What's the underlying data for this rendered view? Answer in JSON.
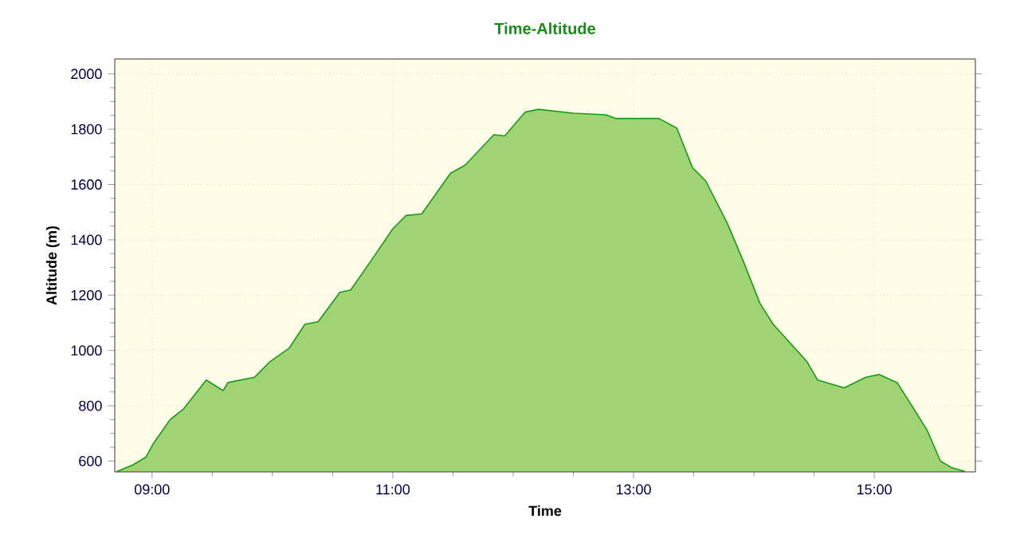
{
  "chart_data": {
    "type": "area",
    "title": "Time-Altitude",
    "xlabel": "Time",
    "ylabel": "Altitude (m)",
    "xlim": [
      8.69,
      15.84
    ],
    "ylim": [
      561,
      2054
    ],
    "xticks": [
      {
        "value": 9,
        "label": "09:00"
      },
      {
        "value": 11,
        "label": "11:00"
      },
      {
        "value": 13,
        "label": "13:00"
      },
      {
        "value": 15,
        "label": "15:00"
      }
    ],
    "yticks": [
      600,
      800,
      1000,
      1200,
      1400,
      1600,
      1800,
      2000
    ],
    "grid": true,
    "series": [
      {
        "color": "#1a9a1a",
        "x": [
          8.71,
          8.84,
          8.95,
          9.01,
          9.15,
          9.26,
          9.45,
          9.59,
          9.63,
          9.85,
          9.98,
          10.14,
          10.27,
          10.38,
          10.56,
          10.65,
          10.82,
          11.0,
          11.11,
          11.24,
          11.48,
          11.6,
          11.84,
          11.93,
          12.1,
          12.21,
          12.5,
          12.77,
          12.85,
          13.21,
          13.36,
          13.49,
          13.6,
          13.78,
          13.91,
          14.05,
          14.16,
          14.36,
          14.44,
          14.53,
          14.75,
          14.93,
          15.04,
          15.19,
          15.33,
          15.44,
          15.55,
          15.64,
          15.75
        ],
        "values": [
          563,
          586,
          615,
          663,
          750,
          788,
          893,
          855,
          884,
          903,
          960,
          1009,
          1095,
          1104,
          1210,
          1219,
          1325,
          1440,
          1488,
          1494,
          1641,
          1670,
          1780,
          1776,
          1862,
          1872,
          1858,
          1852,
          1839,
          1839,
          1804,
          1661,
          1613,
          1459,
          1325,
          1171,
          1095,
          999,
          960,
          893,
          865,
          903,
          913,
          884,
          788,
          711,
          600,
          577,
          563
        ]
      }
    ]
  }
}
